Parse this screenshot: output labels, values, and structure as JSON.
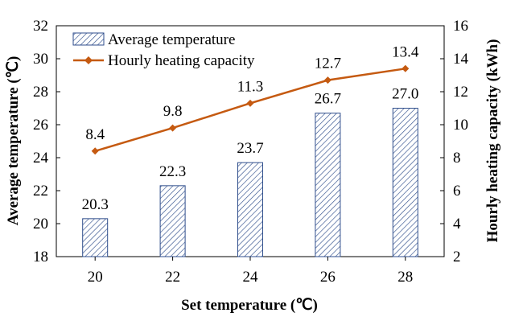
{
  "chart_data": {
    "type": "bar",
    "categories": [
      "20",
      "22",
      "24",
      "26",
      "28"
    ],
    "series": [
      {
        "name": "Average temperature",
        "type": "bar",
        "axis": "left",
        "values": [
          20.3,
          22.3,
          23.7,
          26.7,
          27.0
        ],
        "labels": [
          "20.3",
          "22.3",
          "23.7",
          "26.7",
          "27.0"
        ],
        "color": "#2f4e8c",
        "pattern": "diagonal-hatch"
      },
      {
        "name": "Hourly heating capacity",
        "type": "line",
        "axis": "right",
        "values": [
          8.4,
          9.8,
          11.3,
          12.7,
          13.4
        ],
        "labels": [
          "8.4",
          "9.8",
          "11.3",
          "12.7",
          "13.4"
        ],
        "color": "#c55a11",
        "marker": "diamond"
      }
    ],
    "xlabel": "Set temperature (℃)",
    "ylabel": "Average temperature (℃)",
    "y2label": "Hourly heating capacity (kWh)",
    "ylim": [
      18,
      32
    ],
    "yticks": [
      "18",
      "20",
      "22",
      "24",
      "26",
      "28",
      "30",
      "32"
    ],
    "y2lim": [
      2,
      16
    ],
    "y2ticks": [
      "2",
      "4",
      "6",
      "8",
      "10",
      "12",
      "14",
      "16"
    ],
    "grid": false,
    "legend_position": "top-left"
  }
}
